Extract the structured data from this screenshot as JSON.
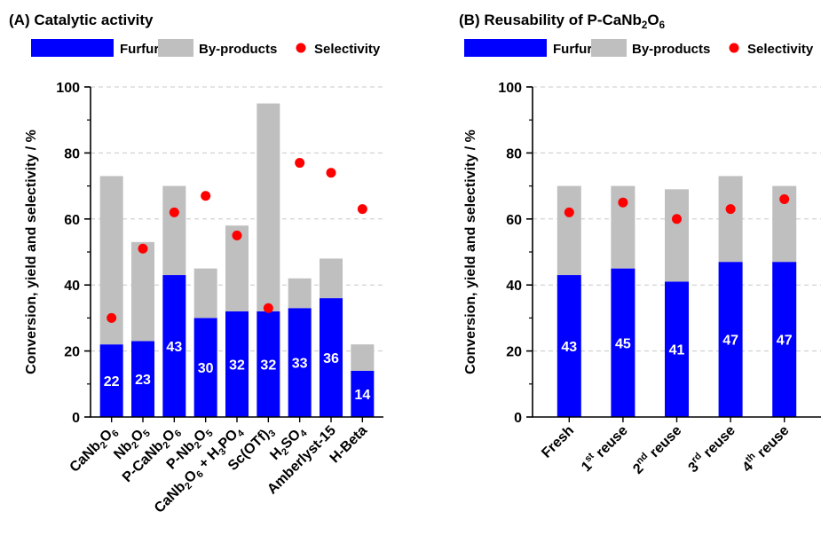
{
  "chart_data": [
    {
      "type": "bar",
      "stacked": true,
      "title": "(A) Catalytic activity",
      "ylabel": "Conversion, yield and selectivity / %",
      "ylim": [
        0,
        100
      ],
      "yticks": [
        0,
        20,
        40,
        60,
        80,
        100
      ],
      "grid": true,
      "legend_position": "top",
      "categories": [
        [
          {
            "t": "CaNb"
          },
          {
            "t": "2",
            "s": "sub"
          },
          {
            "t": "O"
          },
          {
            "t": "6",
            "s": "sub"
          }
        ],
        [
          {
            "t": "Nb"
          },
          {
            "t": "2",
            "s": "sub"
          },
          {
            "t": "O"
          },
          {
            "t": "5",
            "s": "sub"
          }
        ],
        [
          {
            "t": "P-CaNb"
          },
          {
            "t": "2",
            "s": "sub"
          },
          {
            "t": "O"
          },
          {
            "t": "6",
            "s": "sub"
          }
        ],
        [
          {
            "t": "P-Nb"
          },
          {
            "t": "2",
            "s": "sub"
          },
          {
            "t": "O"
          },
          {
            "t": "5",
            "s": "sub"
          }
        ],
        [
          {
            "t": "CaNb"
          },
          {
            "t": "2",
            "s": "sub"
          },
          {
            "t": "O"
          },
          {
            "t": "6",
            "s": "sub"
          },
          {
            "t": " + H"
          },
          {
            "t": "3",
            "s": "sub"
          },
          {
            "t": "PO"
          },
          {
            "t": "4",
            "s": "sub"
          }
        ],
        [
          {
            "t": "Sc(OTf)"
          },
          {
            "t": "3",
            "s": "sub"
          }
        ],
        [
          {
            "t": "H"
          },
          {
            "t": "2",
            "s": "sub"
          },
          {
            "t": "SO"
          },
          {
            "t": "4",
            "s": "sub"
          }
        ],
        [
          {
            "t": "Amberlyst-15"
          }
        ],
        [
          {
            "t": "H-Beta"
          }
        ]
      ],
      "series": [
        {
          "name": "Furfural",
          "kind": "bar",
          "color": "#0000ff",
          "values": [
            22,
            23,
            43,
            30,
            32,
            32,
            33,
            36,
            14
          ],
          "data_labels": true
        },
        {
          "name": "By-products",
          "kind": "bar",
          "color": "#bfbfbf",
          "values": [
            51,
            30,
            27,
            15,
            26,
            63,
            9,
            12,
            8
          ]
        },
        {
          "name": "Selectivity",
          "kind": "point",
          "color": "#ff0000",
          "values": [
            30,
            51,
            62,
            67,
            55,
            33,
            77,
            74,
            63
          ]
        }
      ]
    },
    {
      "type": "bar",
      "stacked": true,
      "title": [
        {
          "t": "(B) Reusability of P-CaNb"
        },
        {
          "t": "2",
          "s": "sub"
        },
        {
          "t": "O"
        },
        {
          "t": "6",
          "s": "sub"
        }
      ],
      "ylabel": "Conversion, yield and selectivity / %",
      "ylim": [
        0,
        100
      ],
      "yticks": [
        0,
        20,
        40,
        60,
        80,
        100
      ],
      "grid": true,
      "legend_position": "top",
      "categories": [
        [
          {
            "t": "Fresh"
          }
        ],
        [
          {
            "t": "1"
          },
          {
            "t": "st",
            "s": "sup"
          },
          {
            "t": " reuse"
          }
        ],
        [
          {
            "t": "2"
          },
          {
            "t": "nd",
            "s": "sup"
          },
          {
            "t": " reuse"
          }
        ],
        [
          {
            "t": "3"
          },
          {
            "t": "rd",
            "s": "sup"
          },
          {
            "t": " reuse"
          }
        ],
        [
          {
            "t": "4"
          },
          {
            "t": "th",
            "s": "sup"
          },
          {
            "t": " reuse"
          }
        ]
      ],
      "series": [
        {
          "name": "Furfural",
          "kind": "bar",
          "color": "#0000ff",
          "values": [
            43,
            45,
            41,
            47,
            47
          ],
          "data_labels": true
        },
        {
          "name": "By-products",
          "kind": "bar",
          "color": "#bfbfbf",
          "values": [
            27,
            25,
            28,
            26,
            23
          ]
        },
        {
          "name": "Selectivity",
          "kind": "point",
          "color": "#ff0000",
          "values": [
            62,
            65,
            60,
            63,
            66
          ]
        }
      ]
    }
  ]
}
